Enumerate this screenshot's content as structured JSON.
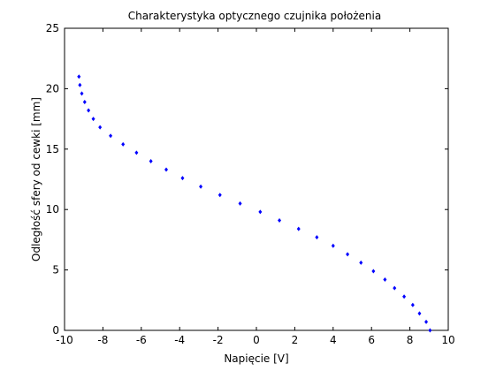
{
  "chart_data": {
    "type": "scatter",
    "title": "Charakterystyka optycznego czujnika położenia",
    "xlabel": "Napięcie [V]",
    "ylabel": "Odległość sfery od cewki [mm]",
    "xlim": [
      -10,
      10
    ],
    "ylim": [
      0,
      25
    ],
    "xticks": [
      -10,
      -8,
      -6,
      -4,
      -2,
      0,
      2,
      4,
      6,
      8,
      10
    ],
    "yticks": [
      0,
      5,
      10,
      15,
      20,
      25
    ],
    "grid": false,
    "legend": "none",
    "marker_color": "#0000ff",
    "series": [
      {
        "x": [
          -9.25,
          -9.2,
          -9.1,
          -8.95,
          -8.75,
          -8.5,
          -8.15,
          -7.6,
          -6.95,
          -6.25,
          -5.5,
          -4.7,
          -3.85,
          -2.9,
          -1.9,
          -0.85,
          0.2,
          1.2,
          2.2,
          3.15,
          4.0,
          4.75,
          5.45,
          6.1,
          6.7,
          7.2,
          7.7,
          8.15,
          8.5,
          8.85,
          9.05
        ],
        "y": [
          21.0,
          20.3,
          19.6,
          18.9,
          18.2,
          17.5,
          16.8,
          16.1,
          15.4,
          14.7,
          14.0,
          13.3,
          12.6,
          11.9,
          11.2,
          10.5,
          9.8,
          9.1,
          8.4,
          7.7,
          7.0,
          6.3,
          5.6,
          4.9,
          4.2,
          3.5,
          2.8,
          2.1,
          1.4,
          0.7,
          0.0
        ]
      }
    ]
  }
}
